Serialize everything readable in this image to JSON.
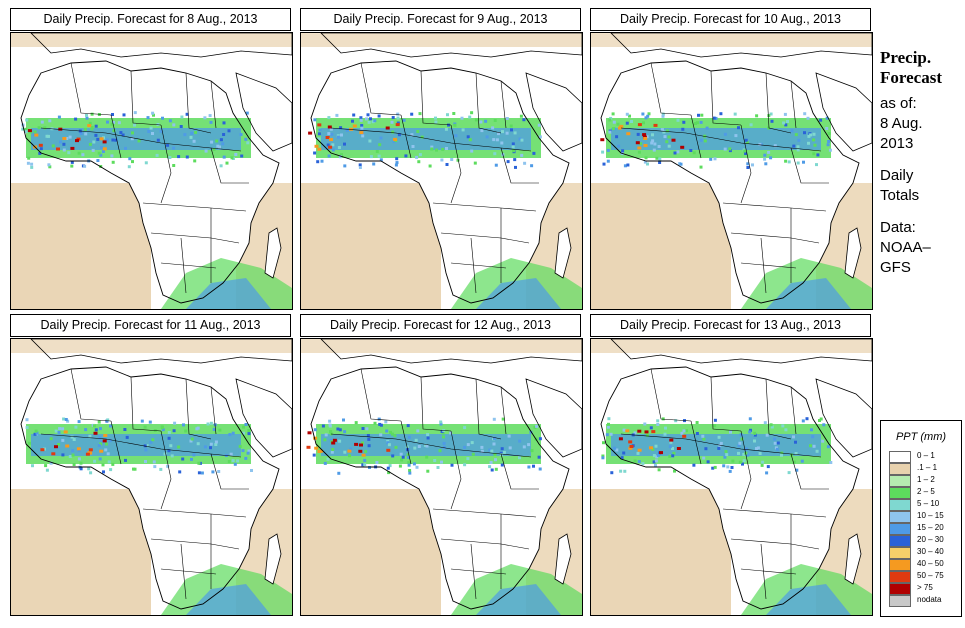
{
  "panels": [
    {
      "title": "Daily Precip. Forecast for  8 Aug., 2013"
    },
    {
      "title": "Daily Precip. Forecast for  9 Aug., 2013"
    },
    {
      "title": "Daily Precip. Forecast for  10 Aug., 2013"
    },
    {
      "title": "Daily Precip. Forecast for  11 Aug., 2013"
    },
    {
      "title": "Daily Precip. Forecast for  12 Aug., 2013"
    },
    {
      "title": "Daily Precip. Forecast for  13 Aug., 2013"
    }
  ],
  "side": {
    "heading1": "Precip.",
    "heading2": "Forecast",
    "line1": "as of:",
    "line2": "8 Aug.",
    "line3": "2013",
    "line4": "Daily",
    "line5": "Totals",
    "line6": "Data:",
    "line7": "NOAA–",
    "line8": "GFS"
  },
  "legend": {
    "title": "PPT (mm)",
    "items": [
      {
        "label": "0 – 1",
        "color": "#ffffff"
      },
      {
        "label": ".1 – 1",
        "color": "#e8d2ae"
      },
      {
        "label": "1 – 2",
        "color": "#b5ecb0"
      },
      {
        "label": "2 – 5",
        "color": "#5ddc5d"
      },
      {
        "label": "5 – 10",
        "color": "#7fd8d0"
      },
      {
        "label": "10 – 15",
        "color": "#8fc4ee"
      },
      {
        "label": "15 – 20",
        "color": "#4f9be6"
      },
      {
        "label": "20 – 30",
        "color": "#2a62d8"
      },
      {
        "label": "30 – 40",
        "color": "#f6d06a"
      },
      {
        "label": "40 – 50",
        "color": "#f59a20"
      },
      {
        "label": "50 – 75",
        "color": "#e03a10"
      },
      {
        "label": "> 75",
        "color": "#b00000"
      },
      {
        "label": "nodata",
        "color": "#c8c8c8"
      }
    ]
  }
}
